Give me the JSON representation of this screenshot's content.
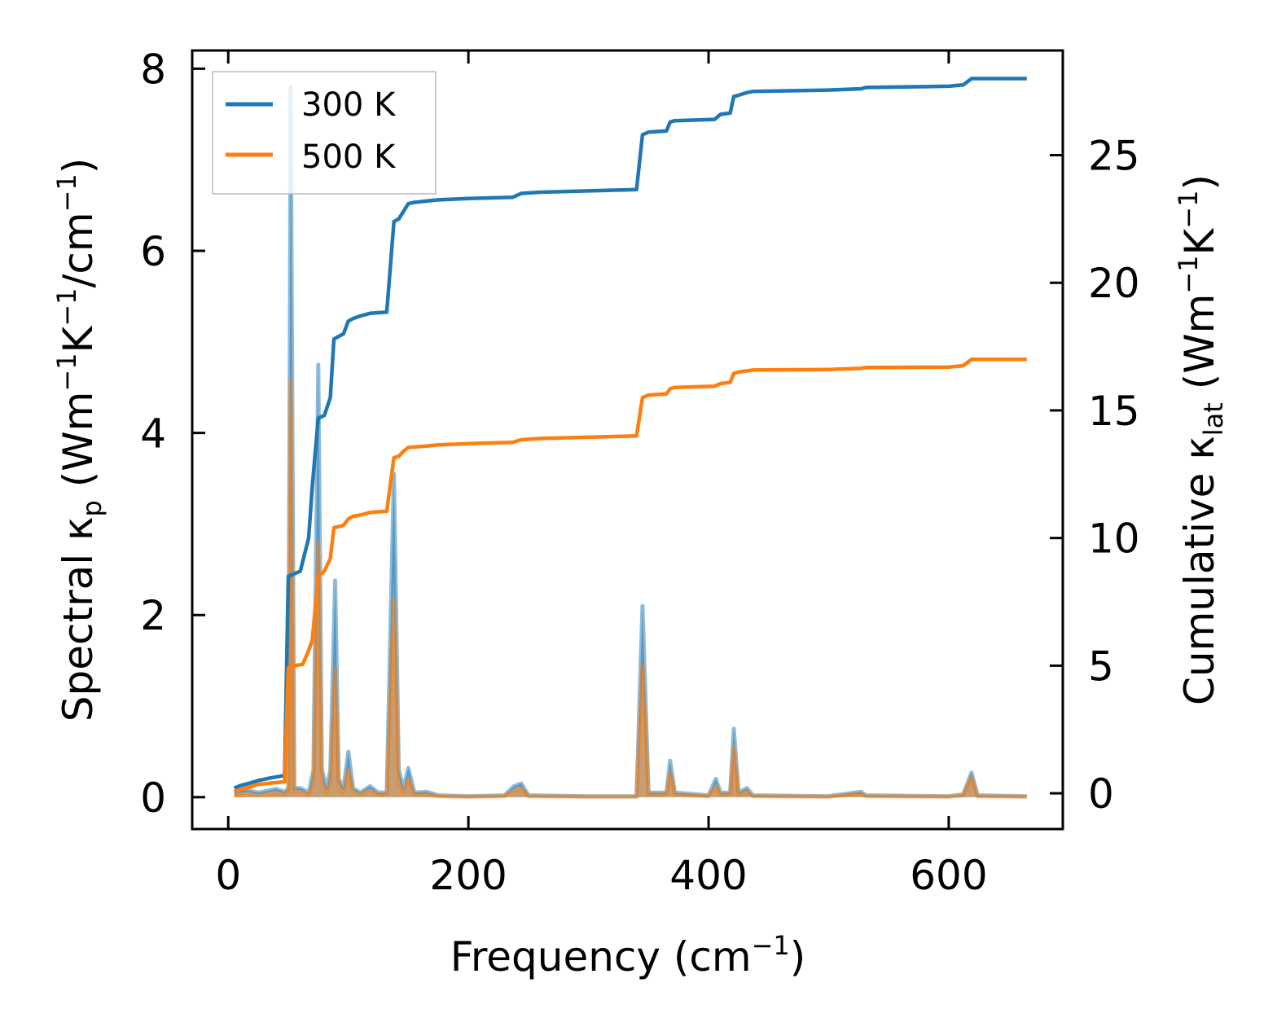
{
  "chart_data": {
    "type": "line",
    "xlabel": "Frequency (cm",
    "xlabel_sup": "−1",
    "xlabel_end": ")",
    "xlim": [
      -30,
      695
    ],
    "xticks": [
      0,
      200,
      400,
      600
    ],
    "ylabel_left": {
      "pre": "Spectral κ",
      "sub": "p",
      "mid1": " (Wm",
      "sup1": "−1",
      "mid2": "K",
      "sup2": "−1",
      "mid3": "/cm",
      "sup3": "−1",
      "end": ")"
    },
    "ylim_left": [
      -0.35,
      8.2
    ],
    "yticks_left": [
      0,
      2,
      4,
      6,
      8
    ],
    "ylabel_right": {
      "pre": "Cumulative κ",
      "sub": "lat",
      "mid1": " (Wm",
      "sup1": "−1",
      "mid2": "K",
      "sup2": "−1",
      "end": ")"
    },
    "ylim_right": [
      -1.4,
      29.1
    ],
    "yticks_right": [
      0,
      5,
      10,
      15,
      20,
      25
    ],
    "legend_position": "top-left",
    "series": [
      {
        "name": "300 K",
        "color": "#1f77b4",
        "spectral": [
          [
            5,
            0.05
          ],
          [
            15,
            0.08
          ],
          [
            25,
            0.05
          ],
          [
            40,
            0.09
          ],
          [
            47,
            0.06
          ],
          [
            50,
            0.1
          ],
          [
            52,
            7.8
          ],
          [
            55,
            0.1
          ],
          [
            60,
            0.1
          ],
          [
            67,
            0.05
          ],
          [
            71,
            0.3
          ],
          [
            75,
            4.75
          ],
          [
            78,
            0.3
          ],
          [
            82,
            0.1
          ],
          [
            85,
            0.3
          ],
          [
            89,
            2.38
          ],
          [
            92,
            0.2
          ],
          [
            96,
            0.1
          ],
          [
            100,
            0.5
          ],
          [
            104,
            0.1
          ],
          [
            110,
            0.05
          ],
          [
            118,
            0.12
          ],
          [
            125,
            0.05
          ],
          [
            132,
            0.05
          ],
          [
            138,
            3.55
          ],
          [
            142,
            0.3
          ],
          [
            146,
            0.1
          ],
          [
            150,
            0.32
          ],
          [
            155,
            0.05
          ],
          [
            165,
            0.06
          ],
          [
            175,
            0.02
          ],
          [
            200,
            0.01
          ],
          [
            230,
            0.02
          ],
          [
            238,
            0.12
          ],
          [
            244,
            0.15
          ],
          [
            250,
            0.02
          ],
          [
            300,
            0.01
          ],
          [
            340,
            0.01
          ],
          [
            345,
            2.1
          ],
          [
            350,
            0.05
          ],
          [
            365,
            0.05
          ],
          [
            368,
            0.4
          ],
          [
            372,
            0.05
          ],
          [
            400,
            0.02
          ],
          [
            406,
            0.2
          ],
          [
            410,
            0.05
          ],
          [
            418,
            0.05
          ],
          [
            421,
            0.75
          ],
          [
            425,
            0.05
          ],
          [
            432,
            0.1
          ],
          [
            437,
            0.02
          ],
          [
            500,
            0.01
          ],
          [
            527,
            0.06
          ],
          [
            531,
            0.02
          ],
          [
            600,
            0.01
          ],
          [
            612,
            0.03
          ],
          [
            619,
            0.27
          ],
          [
            624,
            0.02
          ],
          [
            665,
            0.01
          ]
        ],
        "cumulative": [
          [
            5,
            0.2
          ],
          [
            10,
            0.3
          ],
          [
            18,
            0.4
          ],
          [
            25,
            0.5
          ],
          [
            35,
            0.6
          ],
          [
            47,
            0.7
          ],
          [
            50,
            8.5
          ],
          [
            55,
            8.6
          ],
          [
            60,
            8.7
          ],
          [
            67,
            10.0
          ],
          [
            70,
            12.0
          ],
          [
            75,
            14.7
          ],
          [
            80,
            14.8
          ],
          [
            85,
            15.5
          ],
          [
            88,
            17.8
          ],
          [
            92,
            17.9
          ],
          [
            96,
            18.0
          ],
          [
            100,
            18.5
          ],
          [
            104,
            18.6
          ],
          [
            110,
            18.7
          ],
          [
            118,
            18.8
          ],
          [
            132,
            18.85
          ],
          [
            138,
            22.4
          ],
          [
            142,
            22.5
          ],
          [
            146,
            22.8
          ],
          [
            150,
            23.1
          ],
          [
            155,
            23.15
          ],
          [
            165,
            23.2
          ],
          [
            175,
            23.25
          ],
          [
            200,
            23.3
          ],
          [
            237,
            23.35
          ],
          [
            244,
            23.5
          ],
          [
            260,
            23.55
          ],
          [
            300,
            23.6
          ],
          [
            340,
            23.65
          ],
          [
            345,
            25.8
          ],
          [
            350,
            25.9
          ],
          [
            365,
            25.95
          ],
          [
            368,
            26.3
          ],
          [
            372,
            26.35
          ],
          [
            405,
            26.4
          ],
          [
            410,
            26.6
          ],
          [
            418,
            26.65
          ],
          [
            421,
            27.3
          ],
          [
            425,
            27.35
          ],
          [
            432,
            27.45
          ],
          [
            437,
            27.5
          ],
          [
            500,
            27.55
          ],
          [
            527,
            27.6
          ],
          [
            531,
            27.65
          ],
          [
            600,
            27.7
          ],
          [
            612,
            27.75
          ],
          [
            619,
            28.0
          ],
          [
            665,
            28.0
          ]
        ]
      },
      {
        "name": "500 K",
        "color": "#ff7f0e",
        "spectral": [
          [
            5,
            0.02
          ],
          [
            15,
            0.04
          ],
          [
            25,
            0.02
          ],
          [
            40,
            0.05
          ],
          [
            47,
            0.03
          ],
          [
            50,
            0.06
          ],
          [
            52,
            4.58
          ],
          [
            55,
            0.06
          ],
          [
            60,
            0.06
          ],
          [
            67,
            0.03
          ],
          [
            71,
            0.15
          ],
          [
            75,
            2.8
          ],
          [
            78,
            0.15
          ],
          [
            82,
            0.05
          ],
          [
            85,
            0.15
          ],
          [
            89,
            1.42
          ],
          [
            92,
            0.1
          ],
          [
            96,
            0.05
          ],
          [
            100,
            0.3
          ],
          [
            104,
            0.05
          ],
          [
            110,
            0.03
          ],
          [
            118,
            0.07
          ],
          [
            125,
            0.03
          ],
          [
            132,
            0.03
          ],
          [
            138,
            2.18
          ],
          [
            142,
            0.15
          ],
          [
            146,
            0.05
          ],
          [
            150,
            0.2
          ],
          [
            155,
            0.03
          ],
          [
            165,
            0.03
          ],
          [
            175,
            0.01
          ],
          [
            200,
            0.005
          ],
          [
            230,
            0.01
          ],
          [
            238,
            0.07
          ],
          [
            244,
            0.1
          ],
          [
            250,
            0.01
          ],
          [
            300,
            0.005
          ],
          [
            340,
            0.005
          ],
          [
            345,
            1.45
          ],
          [
            350,
            0.03
          ],
          [
            365,
            0.03
          ],
          [
            368,
            0.27
          ],
          [
            372,
            0.03
          ],
          [
            400,
            0.01
          ],
          [
            406,
            0.12
          ],
          [
            410,
            0.03
          ],
          [
            418,
            0.03
          ],
          [
            421,
            0.55
          ],
          [
            425,
            0.03
          ],
          [
            432,
            0.06
          ],
          [
            437,
            0.01
          ],
          [
            500,
            0.005
          ],
          [
            527,
            0.04
          ],
          [
            531,
            0.01
          ],
          [
            600,
            0.005
          ],
          [
            612,
            0.02
          ],
          [
            619,
            0.22
          ],
          [
            624,
            0.01
          ],
          [
            665,
            0.005
          ]
        ],
        "cumulative": [
          [
            5,
            0.05
          ],
          [
            10,
            0.15
          ],
          [
            18,
            0.25
          ],
          [
            25,
            0.35
          ],
          [
            35,
            0.4
          ],
          [
            47,
            0.45
          ],
          [
            50,
            4.9
          ],
          [
            55,
            5.0
          ],
          [
            62,
            5.05
          ],
          [
            67,
            5.6
          ],
          [
            70,
            6.0
          ],
          [
            75,
            8.5
          ],
          [
            80,
            8.7
          ],
          [
            85,
            9.2
          ],
          [
            88,
            10.4
          ],
          [
            92,
            10.45
          ],
          [
            96,
            10.5
          ],
          [
            100,
            10.75
          ],
          [
            104,
            10.85
          ],
          [
            110,
            10.9
          ],
          [
            118,
            11.0
          ],
          [
            132,
            11.05
          ],
          [
            138,
            13.15
          ],
          [
            142,
            13.2
          ],
          [
            146,
            13.4
          ],
          [
            150,
            13.55
          ],
          [
            165,
            13.6
          ],
          [
            175,
            13.65
          ],
          [
            200,
            13.7
          ],
          [
            237,
            13.75
          ],
          [
            244,
            13.85
          ],
          [
            260,
            13.9
          ],
          [
            300,
            13.95
          ],
          [
            340,
            14.0
          ],
          [
            345,
            15.5
          ],
          [
            350,
            15.6
          ],
          [
            365,
            15.65
          ],
          [
            368,
            15.85
          ],
          [
            372,
            15.9
          ],
          [
            405,
            15.95
          ],
          [
            410,
            16.05
          ],
          [
            418,
            16.1
          ],
          [
            421,
            16.45
          ],
          [
            425,
            16.5
          ],
          [
            432,
            16.55
          ],
          [
            437,
            16.58
          ],
          [
            500,
            16.6
          ],
          [
            527,
            16.65
          ],
          [
            531,
            16.68
          ],
          [
            600,
            16.7
          ],
          [
            612,
            16.75
          ],
          [
            619,
            17.0
          ],
          [
            665,
            17.0
          ]
        ]
      }
    ]
  }
}
